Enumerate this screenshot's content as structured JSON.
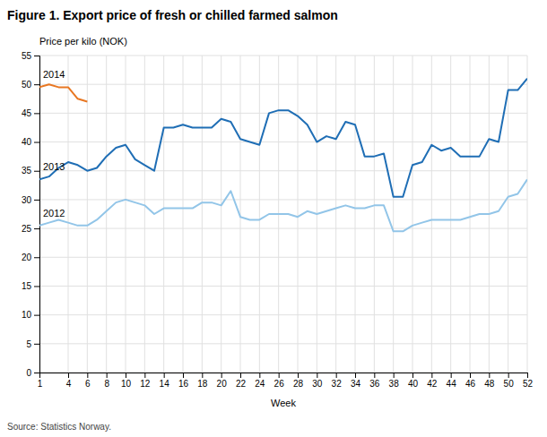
{
  "chart_data": {
    "type": "line",
    "title": "Figure 1. Export price of fresh or chilled farmed salmon",
    "ylabel": "Price per kilo (NOK)",
    "xlabel": "Week",
    "source": "Source: Statistics Norway.",
    "xlim": [
      1,
      52
    ],
    "xticks": [
      1,
      4,
      6,
      8,
      10,
      12,
      14,
      16,
      18,
      20,
      22,
      24,
      26,
      28,
      30,
      32,
      34,
      36,
      38,
      40,
      42,
      44,
      46,
      48,
      50,
      52
    ],
    "ylim": [
      0,
      55
    ],
    "yticks": [
      0,
      5,
      10,
      15,
      20,
      25,
      30,
      35,
      40,
      45,
      50,
      55
    ],
    "grid": true,
    "series": [
      {
        "name": "2013",
        "color": "#1f6eb5",
        "x": [
          1,
          2,
          3,
          4,
          5,
          6,
          7,
          8,
          9,
          10,
          11,
          12,
          13,
          14,
          15,
          16,
          17,
          18,
          19,
          20,
          21,
          22,
          23,
          24,
          25,
          26,
          27,
          28,
          29,
          30,
          31,
          32,
          33,
          34,
          35,
          36,
          37,
          38,
          39,
          40,
          41,
          42,
          43,
          44,
          45,
          46,
          47,
          48,
          49,
          50,
          51,
          52
        ],
        "values": [
          33.5,
          34.0,
          35.5,
          36.5,
          36.0,
          35.0,
          35.5,
          37.5,
          39.0,
          39.5,
          37.0,
          36.0,
          35.0,
          42.5,
          42.5,
          43.0,
          42.5,
          42.5,
          42.5,
          44.0,
          43.5,
          40.5,
          40.0,
          39.5,
          45.0,
          45.5,
          45.5,
          44.5,
          43.0,
          40.0,
          41.0,
          40.5,
          43.5,
          43.0,
          37.5,
          37.5,
          38.0,
          30.5,
          30.5,
          36.0,
          36.5,
          39.5,
          38.5,
          39.0,
          37.5,
          37.5,
          37.5,
          40.5,
          40.0,
          49.0,
          49.0,
          51.0
        ]
      },
      {
        "name": "2012",
        "color": "#92c5e8",
        "x": [
          1,
          2,
          3,
          4,
          5,
          6,
          7,
          8,
          9,
          10,
          11,
          12,
          13,
          14,
          15,
          16,
          17,
          18,
          19,
          20,
          21,
          22,
          23,
          24,
          25,
          26,
          27,
          28,
          29,
          30,
          31,
          32,
          33,
          34,
          35,
          36,
          37,
          38,
          39,
          40,
          41,
          42,
          43,
          44,
          45,
          46,
          47,
          48,
          49,
          50,
          51,
          52
        ],
        "values": [
          25.5,
          26.0,
          26.5,
          26.0,
          25.5,
          25.5,
          26.5,
          28.0,
          29.5,
          30.0,
          29.5,
          29.0,
          27.5,
          28.5,
          28.5,
          28.5,
          28.5,
          29.5,
          29.5,
          29.0,
          31.5,
          27.0,
          26.5,
          26.5,
          27.5,
          27.5,
          27.5,
          27.0,
          28.0,
          27.5,
          28.0,
          28.5,
          29.0,
          28.5,
          28.5,
          29.0,
          29.0,
          24.5,
          24.5,
          25.5,
          26.0,
          26.5,
          26.5,
          26.5,
          26.5,
          27.0,
          27.5,
          27.5,
          28.0,
          30.5,
          31.0,
          33.5
        ]
      },
      {
        "name": "2014",
        "color": "#e87722",
        "x": [
          1,
          2,
          3,
          4,
          5,
          6
        ],
        "values": [
          49.5,
          50.0,
          49.5,
          49.5,
          47.5,
          47.0
        ]
      }
    ]
  }
}
